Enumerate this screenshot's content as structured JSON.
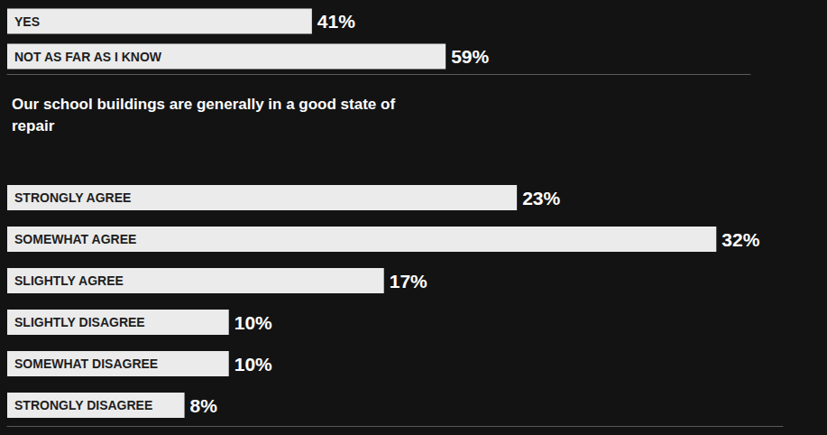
{
  "chart_data": [
    {
      "type": "bar",
      "orientation": "horizontal",
      "categories": [
        "YES",
        "NOT AS FAR AS I KNOW"
      ],
      "values": [
        41,
        59
      ],
      "value_labels": [
        "41%",
        "59%"
      ],
      "color": "#ebebeb",
      "data_labels": true,
      "tick_labels": false,
      "grid": false,
      "xlim": [
        0,
        100
      ]
    },
    {
      "type": "bar",
      "orientation": "horizontal",
      "title": "Our school buildings are generally in a good state of repair",
      "categories": [
        "STRONGLY AGREE",
        "SOMEWHAT AGREE",
        "SLIGHTLY AGREE",
        "SLIGHTLY DISAGREE",
        "SOMEWHAT DISAGREE",
        "STRONGLY DISAGREE"
      ],
      "values": [
        23,
        32,
        17,
        10,
        10,
        8
      ],
      "value_labels": [
        "23%",
        "32%",
        "17%",
        "10%",
        "10%",
        "8%"
      ],
      "color": "#ebebeb",
      "data_labels": true,
      "tick_labels": false,
      "grid": false,
      "xlim": [
        0,
        35
      ]
    }
  ]
}
